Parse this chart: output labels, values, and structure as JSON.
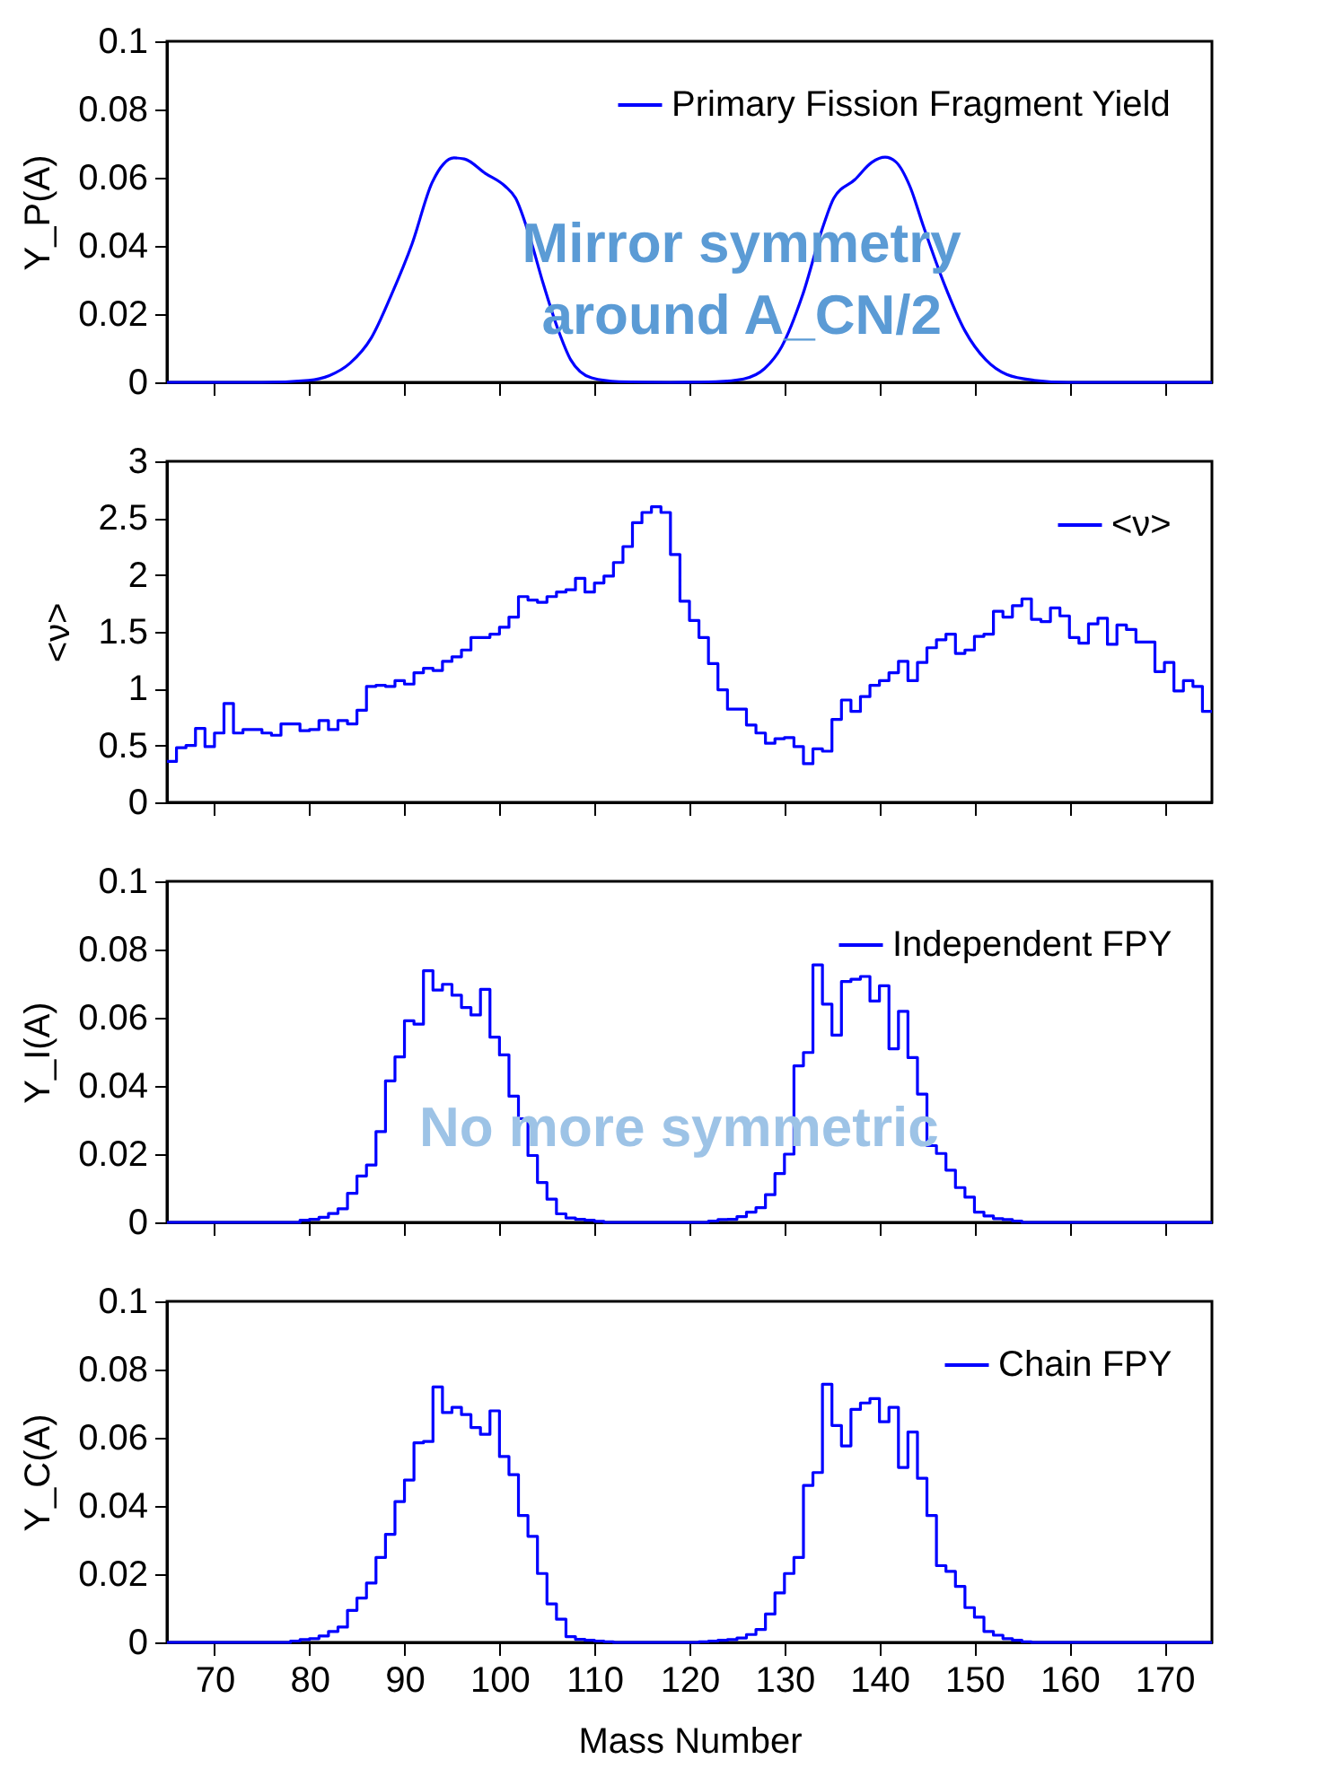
{
  "chart_data": [
    {
      "type": "line",
      "ylabel": "Y_P(A)",
      "annotations": [
        "Mirror symmetry\naround A_CN/2"
      ],
      "xlim": [
        65,
        175
      ],
      "xticks": [
        70,
        80,
        90,
        100,
        110,
        120,
        130,
        140,
        150,
        160,
        170
      ],
      "ylim": [
        0,
        0.1
      ],
      "yticks": [
        0,
        0.02,
        0.04,
        0.06,
        0.08,
        0.1
      ],
      "tick_labels": "y",
      "legend": "top right",
      "grid": false,
      "marker": "none",
      "line_style": "solid",
      "series": [
        {
          "name": "Primary Fission Fragment Yield",
          "color": "#0000ff",
          "x": [
            65,
            75,
            79.9,
            82.1,
            84.3,
            86.5,
            88.6,
            90.8,
            92.9,
            94.1,
            95.2,
            96.3,
            98.5,
            100.6,
            101.7,
            103.2,
            104.6,
            106.1,
            107.5,
            109.7,
            112.6,
            118,
            122.8,
            125.7,
            127.9,
            129.7,
            131.9,
            134.1,
            135.2,
            137.4,
            139.2,
            140.6,
            141.7,
            143.2,
            144.6,
            146.8,
            149,
            151.2,
            153.4,
            156.3,
            159.9,
            175
          ],
          "values": [
            0,
            0,
            0.0006,
            0.002,
            0.0057,
            0.013,
            0.0255,
            0.0406,
            0.0585,
            0.064,
            0.0658,
            0.0655,
            0.0613,
            0.0575,
            0.054,
            0.0425,
            0.029,
            0.016,
            0.0066,
            0.0013,
            0.0002,
            0,
            0.0002,
            0.001,
            0.004,
            0.0104,
            0.0255,
            0.046,
            0.054,
            0.0594,
            0.0645,
            0.066,
            0.0647,
            0.0575,
            0.046,
            0.029,
            0.0151,
            0.0066,
            0.0023,
            0.0006,
            0,
            0
          ]
        }
      ]
    },
    {
      "type": "step",
      "ylabel": "<ν>",
      "xlim": [
        65,
        175
      ],
      "xticks": [
        70,
        80,
        90,
        100,
        110,
        120,
        130,
        140,
        150,
        160,
        170
      ],
      "ylim": [
        0,
        3
      ],
      "yticks": [
        0,
        0.5,
        1,
        1.5,
        2,
        2.5,
        3
      ],
      "tick_labels": "y",
      "legend": "top right",
      "grid": false,
      "marker": "none",
      "line_style": "solid",
      "x": [
        65,
        66,
        67,
        68,
        69,
        70,
        71,
        72,
        73,
        74,
        75,
        76,
        77,
        78,
        79,
        80,
        81,
        82,
        83,
        84,
        85,
        86,
        87,
        88,
        89,
        90,
        91,
        92,
        93,
        94,
        95,
        96,
        97,
        98,
        99,
        100,
        101,
        102,
        103,
        104,
        105,
        106,
        107,
        108,
        109,
        110,
        111,
        112,
        113,
        114,
        115,
        116,
        117,
        118,
        119,
        120,
        121,
        122,
        123,
        124,
        125,
        126,
        127,
        128,
        129,
        130,
        131,
        132,
        133,
        134,
        135,
        136,
        137,
        138,
        139,
        140,
        141,
        142,
        143,
        144,
        145,
        146,
        147,
        148,
        149,
        150,
        151,
        152,
        153,
        154,
        155,
        156,
        157,
        158,
        159,
        160,
        161,
        162,
        163,
        164,
        165,
        166,
        167,
        168,
        169,
        170,
        171,
        172,
        173,
        174,
        175
      ],
      "series": [
        {
          "name": "<ν>",
          "color": "#0000ff",
          "values": [
            0.36,
            0.48,
            0.5,
            0.65,
            0.49,
            0.61,
            0.87,
            0.61,
            0.64,
            0.64,
            0.61,
            0.59,
            0.69,
            0.69,
            0.63,
            0.64,
            0.72,
            0.64,
            0.72,
            0.69,
            0.81,
            1.02,
            1.03,
            1.02,
            1.07,
            1.04,
            1.14,
            1.18,
            1.16,
            1.24,
            1.28,
            1.34,
            1.45,
            1.45,
            1.48,
            1.54,
            1.63,
            1.81,
            1.78,
            1.76,
            1.81,
            1.85,
            1.87,
            1.97,
            1.85,
            1.93,
            1.99,
            2.11,
            2.25,
            2.46,
            2.55,
            2.6,
            2.55,
            2.18,
            1.77,
            1.6,
            1.45,
            1.22,
            0.99,
            0.82,
            0.82,
            0.68,
            0.61,
            0.52,
            0.56,
            0.57,
            0.49,
            0.34,
            0.47,
            0.45,
            0.73,
            0.9,
            0.8,
            0.93,
            1.03,
            1.07,
            1.14,
            1.24,
            1.07,
            1.23,
            1.36,
            1.43,
            1.48,
            1.31,
            1.34,
            1.46,
            1.48,
            1.68,
            1.63,
            1.73,
            1.79,
            1.61,
            1.59,
            1.71,
            1.64,
            1.45,
            1.4,
            1.57,
            1.62,
            1.39,
            1.56,
            1.52,
            1.41,
            1.41,
            1.15,
            1.23,
            0.98,
            1.07,
            1.02,
            0.8,
            0.8
          ]
        }
      ]
    },
    {
      "type": "step",
      "ylabel": "Y_I(A)",
      "annotations": [
        "No more symmetric"
      ],
      "xlim": [
        65,
        175
      ],
      "xticks": [
        70,
        80,
        90,
        100,
        110,
        120,
        130,
        140,
        150,
        160,
        170
      ],
      "ylim": [
        0,
        0.1
      ],
      "yticks": [
        0,
        0.02,
        0.04,
        0.06,
        0.08,
        0.1
      ],
      "tick_labels": "y",
      "legend": "top right",
      "grid": false,
      "marker": "none",
      "line_style": "solid",
      "x": [
        65,
        66,
        67,
        68,
        69,
        70,
        71,
        72,
        73,
        74,
        75,
        76,
        77,
        78,
        79,
        80,
        81,
        82,
        83,
        84,
        85,
        86,
        87,
        88,
        89,
        90,
        91,
        92,
        93,
        94,
        95,
        96,
        97,
        98,
        99,
        100,
        101,
        102,
        103,
        104,
        105,
        106,
        107,
        108,
        109,
        110,
        111,
        112,
        113,
        114,
        115,
        116,
        117,
        118,
        119,
        120,
        121,
        122,
        123,
        124,
        125,
        126,
        127,
        128,
        129,
        130,
        131,
        132,
        133,
        134,
        135,
        136,
        137,
        138,
        139,
        140,
        141,
        142,
        143,
        144,
        145,
        146,
        147,
        148,
        149,
        150,
        151,
        152,
        153,
        154,
        155,
        156,
        157,
        158,
        159,
        160,
        161,
        162,
        163,
        164,
        165,
        166,
        167,
        168,
        169,
        170,
        171,
        172,
        173,
        174,
        175
      ],
      "series": [
        {
          "name": "Independent FPY",
          "color": "#0000ff",
          "values": [
            0,
            0,
            0,
            0,
            0,
            0,
            0,
            0,
            0,
            0,
            0,
            0,
            0,
            0,
            0.0006,
            0.0009,
            0.0015,
            0.0026,
            0.004,
            0.0085,
            0.0136,
            0.0168,
            0.0266,
            0.0415,
            0.0485,
            0.0591,
            0.0581,
            0.0738,
            0.0681,
            0.0698,
            0.0666,
            0.063,
            0.0608,
            0.0683,
            0.0543,
            0.0491,
            0.037,
            0.0304,
            0.0196,
            0.0117,
            0.0068,
            0.0025,
            0.0013,
            0.0009,
            0.0006,
            0.0003,
            0,
            0,
            0,
            0,
            0,
            0,
            0,
            0,
            0,
            0,
            0,
            0.0004,
            0.0008,
            0.0009,
            0.0017,
            0.003,
            0.0043,
            0.0081,
            0.0143,
            0.02,
            0.0459,
            0.0498,
            0.0755,
            0.064,
            0.0549,
            0.0706,
            0.0713,
            0.0721,
            0.0649,
            0.0694,
            0.0509,
            0.0619,
            0.0483,
            0.0376,
            0.0225,
            0.0202,
            0.0153,
            0.0102,
            0.0074,
            0.003,
            0.0019,
            0.0011,
            0.0008,
            0.0004,
            0,
            0,
            0,
            0,
            0,
            0,
            0,
            0,
            0,
            0,
            0,
            0,
            0,
            0,
            0,
            0,
            0,
            0,
            0,
            0,
            0
          ]
        }
      ]
    },
    {
      "type": "step",
      "ylabel": "Y_C(A)",
      "xlabel": "Mass Number",
      "xlim": [
        65,
        175
      ],
      "xticks": [
        70,
        80,
        90,
        100,
        110,
        120,
        130,
        140,
        150,
        160,
        170
      ],
      "ylim": [
        0,
        0.1
      ],
      "yticks": [
        0,
        0.02,
        0.04,
        0.06,
        0.08,
        0.1
      ],
      "legend": "top right",
      "grid": false,
      "marker": "none",
      "line_style": "solid",
      "x": [
        65,
        66,
        67,
        68,
        69,
        70,
        71,
        72,
        73,
        74,
        75,
        76,
        77,
        78,
        79,
        80,
        81,
        82,
        83,
        84,
        85,
        86,
        87,
        88,
        89,
        90,
        91,
        92,
        93,
        94,
        95,
        96,
        97,
        98,
        99,
        100,
        101,
        102,
        103,
        104,
        105,
        106,
        107,
        108,
        109,
        110,
        111,
        112,
        113,
        114,
        115,
        116,
        117,
        118,
        119,
        120,
        121,
        122,
        123,
        124,
        125,
        126,
        127,
        128,
        129,
        130,
        131,
        132,
        133,
        134,
        135,
        136,
        137,
        138,
        139,
        140,
        141,
        142,
        143,
        144,
        145,
        146,
        147,
        148,
        149,
        150,
        151,
        152,
        153,
        154,
        155,
        156,
        157,
        158,
        159,
        160,
        161,
        162,
        163,
        164,
        165,
        166,
        167,
        168,
        169,
        170,
        171,
        172,
        173,
        174,
        175
      ],
      "series": [
        {
          "name": "Chain FPY",
          "color": "#0000ff",
          "values": [
            0,
            0,
            0,
            0,
            0,
            0,
            0,
            0,
            0,
            0,
            0,
            0,
            0,
            0.0004,
            0.0008,
            0.0011,
            0.0019,
            0.0032,
            0.0045,
            0.0094,
            0.013,
            0.0174,
            0.0249,
            0.0317,
            0.0413,
            0.0476,
            0.0585,
            0.0589,
            0.0749,
            0.0674,
            0.0689,
            0.0668,
            0.063,
            0.061,
            0.0679,
            0.0545,
            0.0492,
            0.0372,
            0.0311,
            0.0202,
            0.0113,
            0.0068,
            0.0017,
            0.0009,
            0.0006,
            0.0004,
            0.0002,
            0,
            0,
            0,
            0,
            0,
            0,
            0,
            0,
            0,
            0.0002,
            0.0004,
            0.0006,
            0.0008,
            0.0013,
            0.0023,
            0.0038,
            0.0083,
            0.0145,
            0.0202,
            0.0249,
            0.046,
            0.0498,
            0.0757,
            0.0636,
            0.0576,
            0.0683,
            0.0702,
            0.0715,
            0.0647,
            0.0689,
            0.0513,
            0.0617,
            0.0481,
            0.0372,
            0.0225,
            0.0208,
            0.0164,
            0.0102,
            0.0074,
            0.0032,
            0.0021,
            0.0011,
            0.0006,
            0.0002,
            0,
            0,
            0,
            0,
            0,
            0,
            0,
            0,
            0,
            0,
            0,
            0,
            0,
            0,
            0,
            0,
            0,
            0,
            0,
            0
          ]
        }
      ]
    }
  ]
}
